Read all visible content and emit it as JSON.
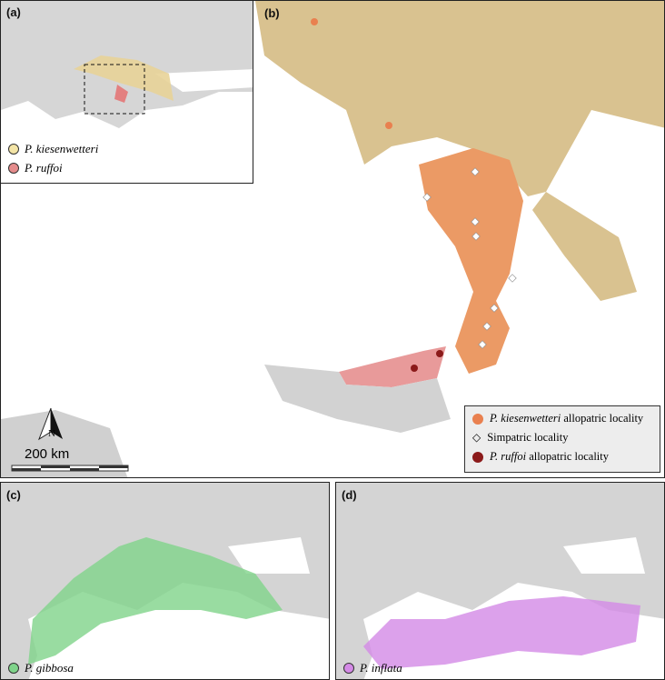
{
  "panels": {
    "b": {
      "label": "(b)",
      "legend": [
        {
          "species": "P. kiesenwetteri",
          "text": "allopatric locality",
          "color": "#e9804f",
          "marker": "circle"
        },
        {
          "species": "",
          "text": "Simpatric locality",
          "color": "#ffffff",
          "marker": "diamond"
        },
        {
          "species": "P. ruffoi",
          "text": "allopatric locality",
          "color": "#8b1a1a",
          "marker": "circle"
        }
      ],
      "scale": "200 km",
      "north": "N"
    },
    "a": {
      "label": "(a)",
      "legend": [
        {
          "species": "P. kiesenwetteri",
          "color": "#f3e4a6"
        },
        {
          "species": "P. ruffoi",
          "color": "#e58c8c"
        }
      ]
    },
    "c": {
      "label": "(c)",
      "legend": {
        "species": "P. gibbosa",
        "color": "#7fd38a"
      }
    },
    "d": {
      "label": "(d)",
      "legend": {
        "species": "P. inflata",
        "color": "#d48ae6"
      }
    }
  },
  "colors": {
    "land": "#c9c9c9",
    "kiesenwetteri_range": "#d9bd86",
    "ruffoi_range": "#e58a8a",
    "overlap": "#ec9a62",
    "gibbosa": "#7fd38a",
    "inflata": "#d38ae6"
  }
}
